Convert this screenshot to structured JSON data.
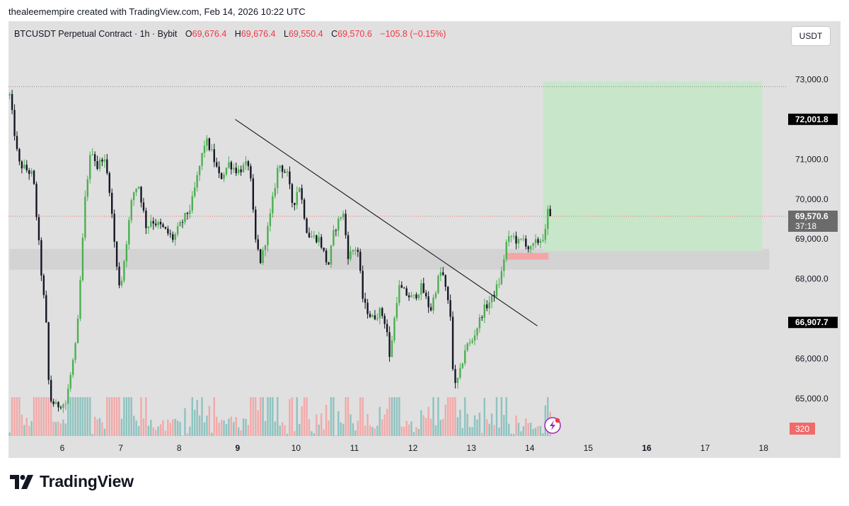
{
  "caption": "thealeemempire created with TradingView.com, Feb 14, 2026 10:22 UTC",
  "legend": {
    "symbol": "BTCUSDT Perpetual Contract · 1h · Bybit",
    "open_label": "O",
    "open": "69,676.4",
    "high_label": "H",
    "high": "69,676.4",
    "low_label": "L",
    "low": "69,550.4",
    "close_label": "C",
    "close": "69,570.6",
    "change": "−105.8 (−0.15%)"
  },
  "currency_button": "USDT",
  "brand": "TradingView",
  "colors": {
    "bull": "#4caf50",
    "bear": "#131722",
    "background": "#e0e0e0",
    "target_zone": "#c8e6c9",
    "support_band": "#d3d3d3",
    "entry_marker": "#f4a6a6",
    "price_label_bg": "#6b6b6b",
    "volume_up": "#8dc3c0",
    "volume_down": "#f2a9a9",
    "volume_badge": "#f06a6a"
  },
  "chart_data": {
    "type": "candlestick",
    "interval": "1h",
    "ylim": [
      64700,
      73200
    ],
    "y_ticks": [
      "73,000.0",
      "71,000.0",
      "70,000.0",
      "69,000.0",
      "68,000.0",
      "66,000.0",
      "65,000.0"
    ],
    "y_tick_values": [
      73000,
      71000,
      70000,
      69000,
      68000,
      66000,
      65000
    ],
    "x_ticks": [
      "6",
      "7",
      "8",
      "9",
      "10",
      "11",
      "12",
      "13",
      "14",
      "15",
      "16",
      "17",
      "18"
    ],
    "x_tick_day": [
      6,
      7,
      8,
      9,
      10,
      11,
      12,
      13,
      14,
      15,
      16,
      17,
      18
    ],
    "x_bold_ticks": [
      "9",
      "16"
    ],
    "xlim_days": [
      5.1,
      18.1
    ],
    "last_bar_day": 14.37,
    "path_days": [
      5.1,
      5.25,
      5.5,
      5.65,
      5.72,
      5.78,
      5.9,
      6.0,
      6.05,
      6.25,
      6.4,
      6.5,
      6.6,
      6.7,
      6.8,
      6.95,
      7.0,
      7.2,
      7.3,
      7.45,
      7.5,
      7.7,
      7.9,
      8.0,
      8.2,
      8.45,
      8.55,
      8.7,
      8.85,
      9.0,
      9.2,
      9.3,
      9.4,
      9.55,
      9.7,
      9.85,
      9.95,
      10.05,
      10.2,
      10.4,
      10.55,
      10.65,
      10.8,
      10.9,
      10.95,
      11.05,
      11.15,
      11.3,
      11.45,
      11.55,
      11.6,
      11.75,
      11.9,
      12.0,
      12.15,
      12.3,
      12.45,
      12.5,
      12.55,
      12.65,
      12.7,
      12.8,
      12.9,
      13.0,
      13.1,
      13.2,
      13.35,
      13.5,
      13.6,
      13.7,
      13.8,
      13.9,
      14.0,
      14.1,
      14.2,
      14.28,
      14.32,
      14.37
    ],
    "path_prices": [
      72600,
      70900,
      70600,
      68000,
      67000,
      65000,
      64800,
      64900,
      64800,
      66500,
      70200,
      71300,
      70800,
      71100,
      70400,
      68000,
      67800,
      70100,
      70400,
      69200,
      69500,
      69300,
      69000,
      69300,
      69800,
      71500,
      71200,
      70500,
      70900,
      70700,
      70900,
      69000,
      68400,
      69500,
      70900,
      70600,
      69800,
      70400,
      69100,
      69000,
      68300,
      69200,
      69700,
      68500,
      68700,
      68800,
      67400,
      67000,
      67200,
      66800,
      66000,
      67800,
      67600,
      67500,
      67800,
      67200,
      68100,
      68200,
      67800,
      67000,
      65200,
      65600,
      66300,
      66400,
      66800,
      67200,
      67500,
      68000,
      68900,
      69100,
      68900,
      69000,
      68700,
      68900,
      69000,
      69200,
      69900,
      69570
    ],
    "target_zone": {
      "from_day": 14.23,
      "to_day": 17.98,
      "top": 72950,
      "bottom": 68700
    },
    "support_band": {
      "from_day": 5.1,
      "to_day": 18.1,
      "top": 68750,
      "bottom": 68230
    },
    "entry_marker": {
      "from_day": 13.6,
      "to_day": 14.32,
      "top": 68650,
      "bottom": 68480
    },
    "trendline": {
      "start_day": 8.96,
      "start_price": 72000,
      "end_day": 14.13,
      "end_price": 66820
    },
    "dotted_level_top": 72820,
    "dotted_level_current": 69570,
    "price_labels": [
      {
        "text": "72,001.8",
        "price": 72001.8,
        "style": "dark"
      },
      {
        "text": "69,570.6",
        "price": 69570.6,
        "style": "gray",
        "sub": "37:18"
      },
      {
        "text": "66,907.7",
        "price": 66907.7,
        "style": "dark"
      }
    ],
    "volume_badge": "320"
  }
}
